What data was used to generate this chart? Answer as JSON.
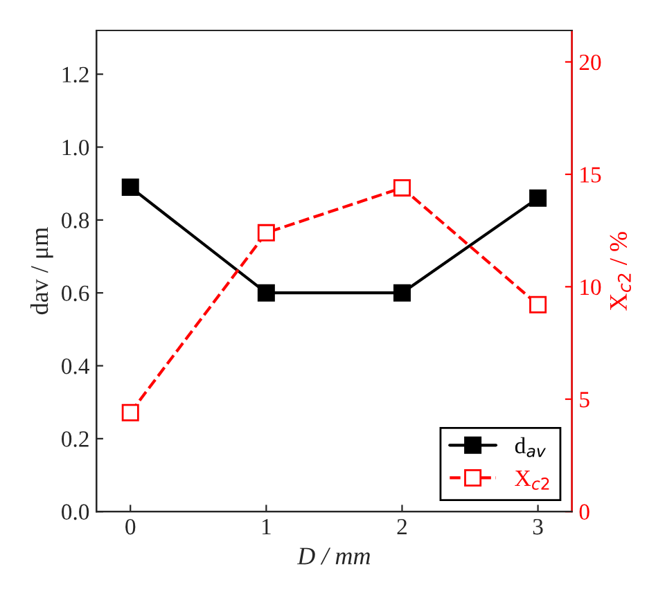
{
  "chart_data": {
    "type": "line",
    "xlabel": "D / mm",
    "ylabel": "dav / μm",
    "y2label": "X$_{c2}$ / %",
    "x": [
      0,
      1,
      2,
      3
    ],
    "xlim": [
      -0.25,
      3.25
    ],
    "xticks": [
      0,
      1,
      2,
      3
    ],
    "ylim": [
      0,
      1.32
    ],
    "yticks": [
      {
        "value": 0,
        "label": "0.0"
      },
      0.2,
      0.4,
      0.6,
      0.8,
      {
        "value": 1,
        "label": "1.0"
      },
      1.2
    ],
    "y2lim": [
      0,
      21.4
    ],
    "y2ticks": [
      0,
      5,
      10,
      15,
      20
    ],
    "series": [
      {
        "name": "d$_{av}$",
        "color": "#000000",
        "values": [
          0.89,
          0.6,
          0.6,
          0.86
        ],
        "marker": "square",
        "line_style": "solid"
      },
      {
        "name": "X$_{c2}$",
        "color": "#ff0000",
        "values": [
          4.4,
          12.4,
          14.4,
          9.2
        ],
        "axis": "y2",
        "marker": "square",
        "line_style": "dashed"
      }
    ],
    "legend": "bottom right",
    "grid": false
  }
}
